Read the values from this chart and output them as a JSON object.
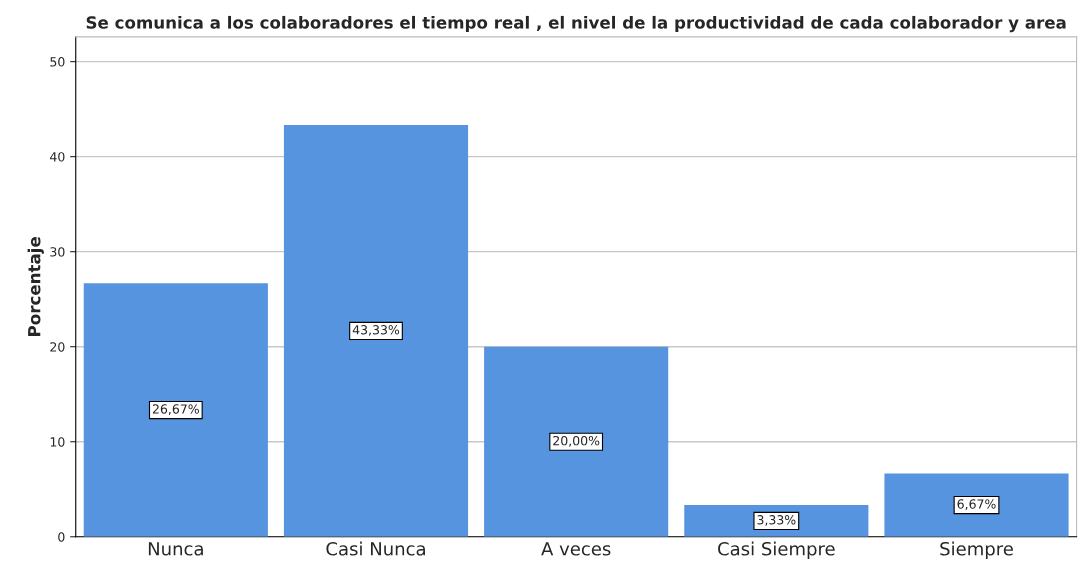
{
  "chart_data": {
    "type": "bar",
    "title": "Se comunica a los colaboradores el tiempo real , el nivel de la productividad de cada colaborador y area",
    "ylabel": "Porcentaje",
    "categories": [
      "Nunca",
      "Casi Nunca",
      "A veces",
      "Casi Siempre",
      "Siempre"
    ],
    "values": [
      26.67,
      43.33,
      20.0,
      3.33,
      6.67
    ],
    "value_labels": [
      "26,67%",
      "43,33%",
      "20,00%",
      "3,33%",
      "6,67%"
    ],
    "color": "#5694e0",
    "ylim": [
      0,
      52.6
    ],
    "yticks": [
      0,
      10,
      20,
      30,
      40,
      50
    ],
    "grid": "y"
  }
}
